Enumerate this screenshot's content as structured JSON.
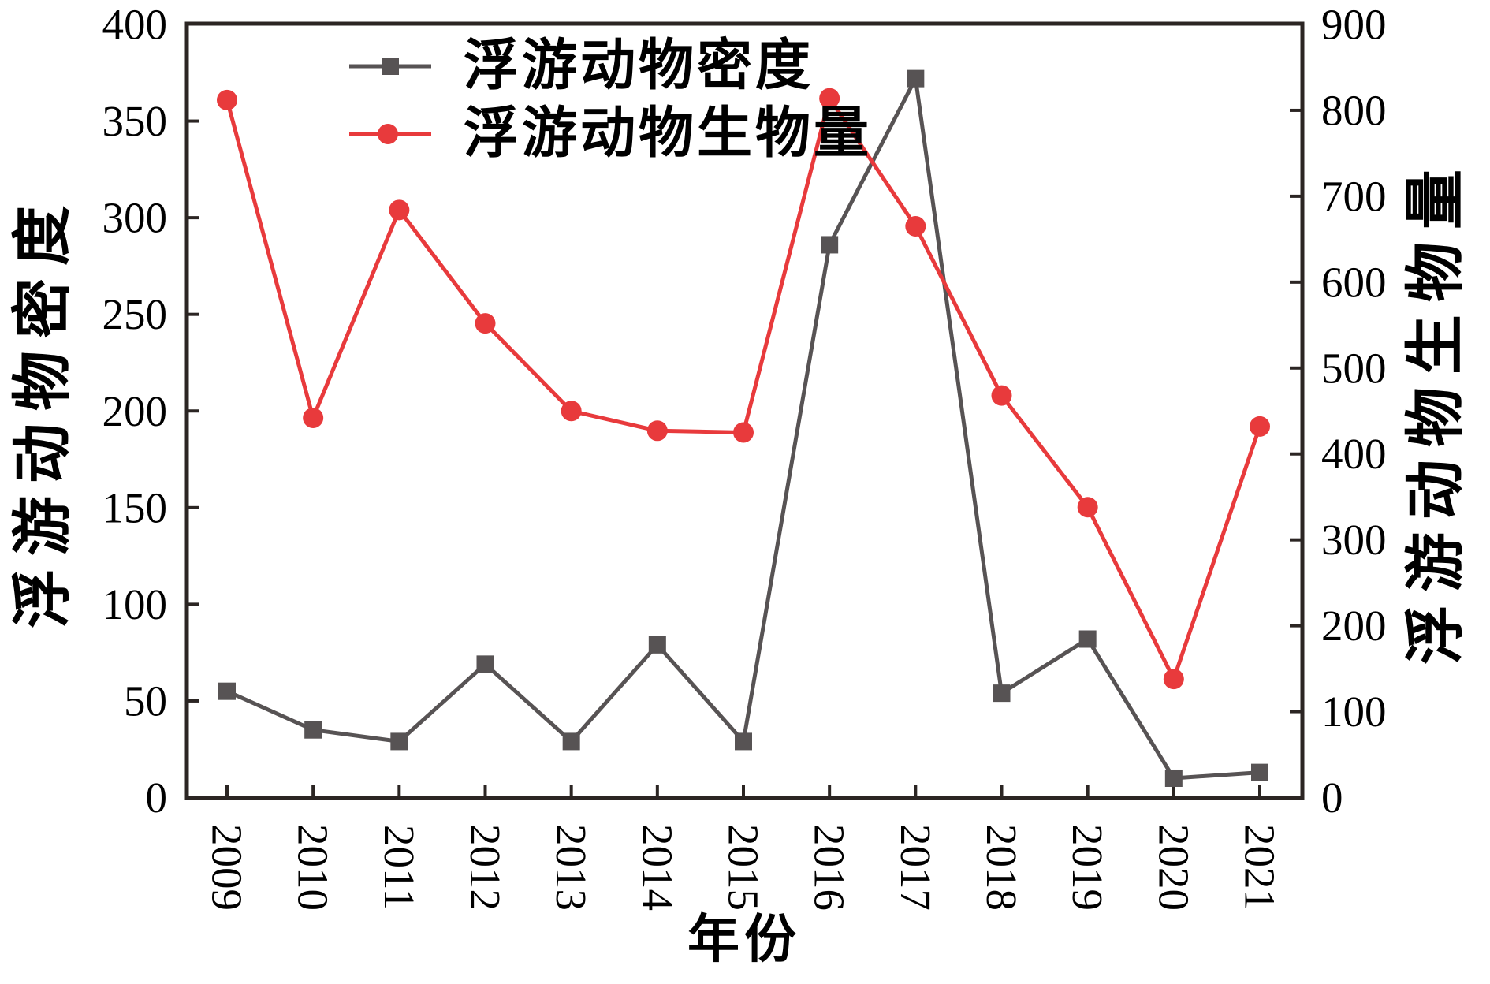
{
  "chart_data": {
    "type": "line",
    "title": "",
    "xlabel": "年份",
    "x": [
      "2009",
      "2010",
      "2011",
      "2012",
      "2013",
      "2014",
      "2015",
      "2016",
      "2017",
      "2018",
      "2019",
      "2020",
      "2021"
    ],
    "series": [
      {
        "name": "浮游动物密度",
        "axis": "left",
        "marker": "square",
        "color": "#575354",
        "values": [
          55,
          35,
          29,
          69,
          29,
          79,
          29,
          286,
          372,
          54,
          82,
          10,
          13
        ]
      },
      {
        "name": "浮游动物生物量",
        "axis": "right",
        "marker": "circle",
        "color": "#e83a3c",
        "values": [
          812,
          442,
          684,
          552,
          450,
          427,
          425,
          814,
          665,
          468,
          338,
          138,
          432
        ]
      }
    ],
    "left_axis": {
      "label": "浮游动物密度",
      "min": 0,
      "max": 400,
      "step": 50,
      "ticks": [
        "0",
        "50",
        "100",
        "150",
        "200",
        "250",
        "300",
        "350",
        "400"
      ]
    },
    "right_axis": {
      "label": "浮游动物生物量",
      "min": 0,
      "max": 900,
      "step": 100,
      "ticks": [
        "0",
        "100",
        "200",
        "300",
        "400",
        "500",
        "600",
        "700",
        "800",
        "900"
      ]
    },
    "grid": "off",
    "legend_position": "top-center",
    "frame_color": "#2b2523"
  }
}
